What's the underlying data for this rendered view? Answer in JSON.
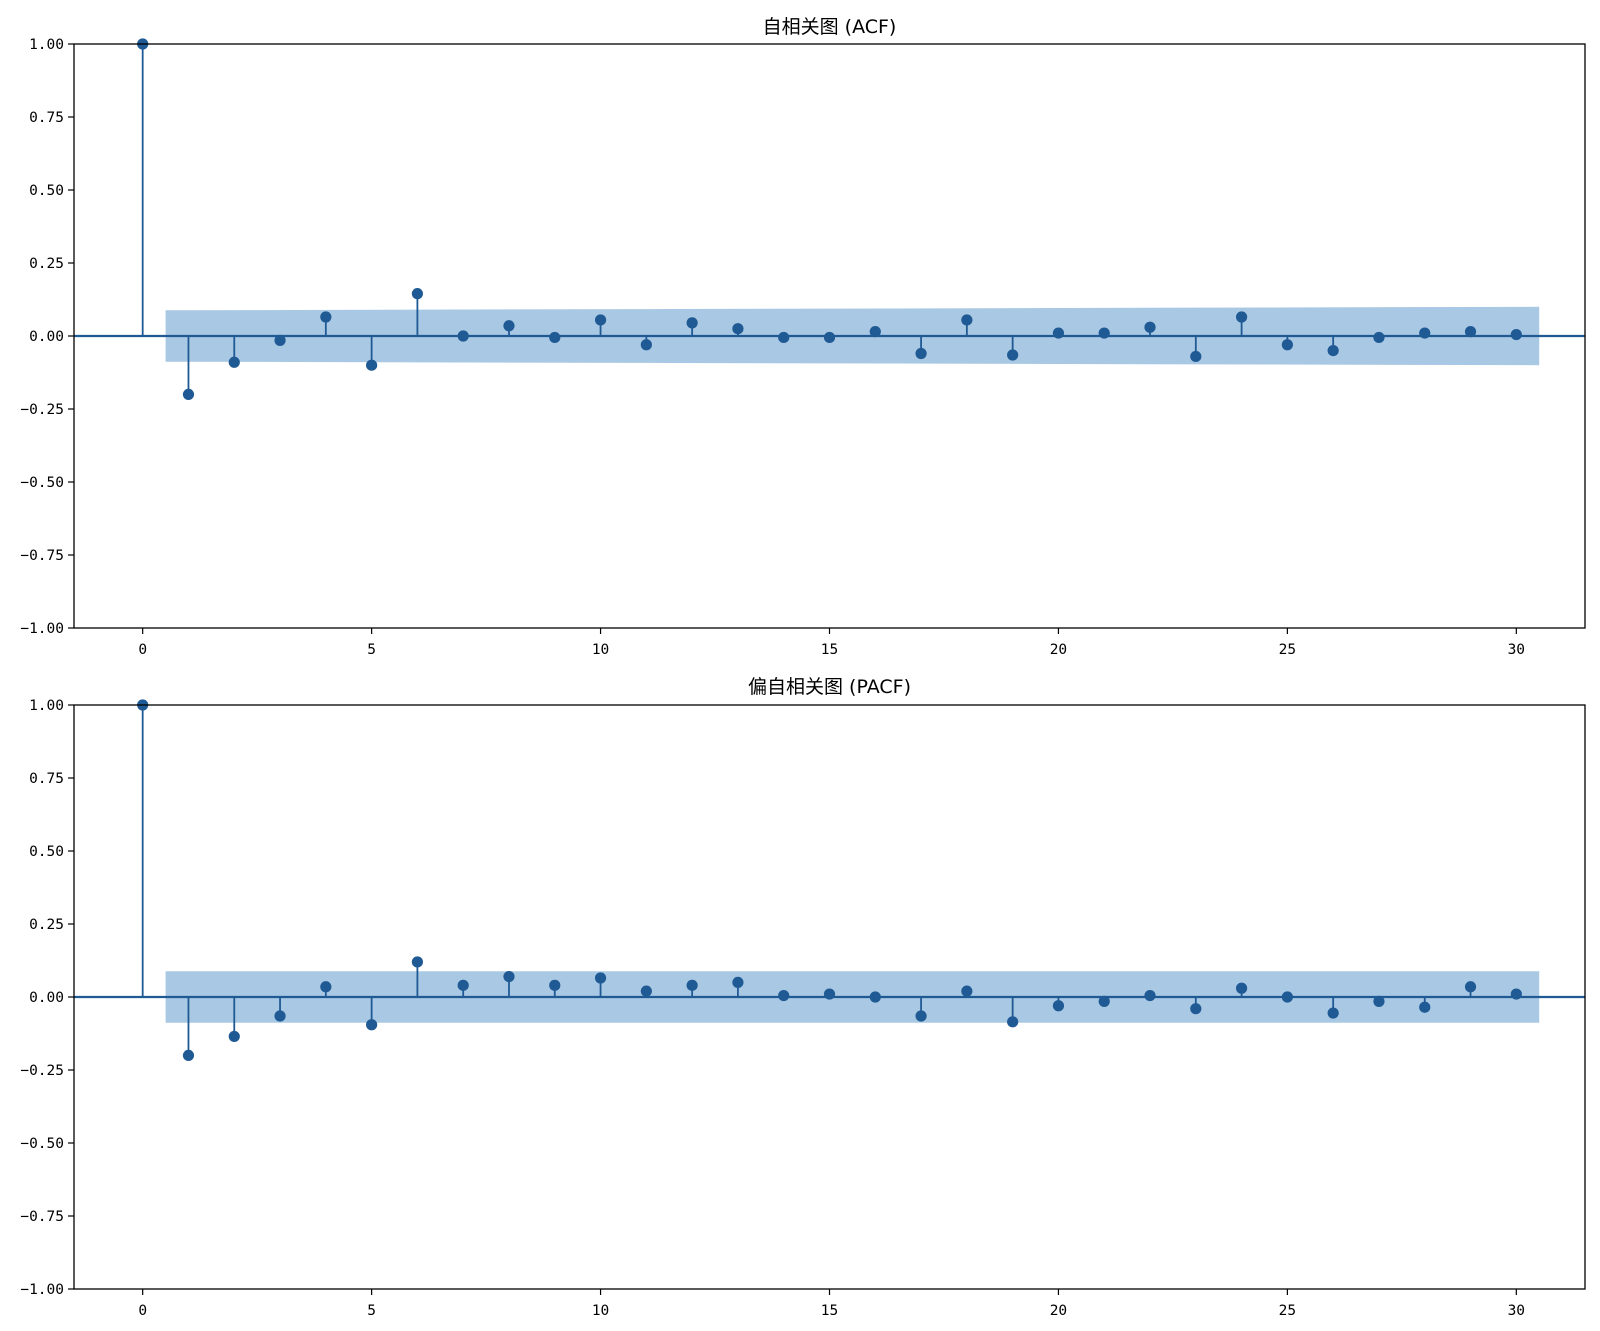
{
  "chart_data": [
    {
      "type": "stem",
      "title": "自相关图 (ACF)",
      "xlabel": "",
      "ylabel": "",
      "xlim": [
        -1.5,
        31.5
      ],
      "ylim": [
        -1.0,
        1.0
      ],
      "x_ticks": [
        0,
        5,
        10,
        15,
        20,
        25,
        30
      ],
      "y_ticks": [
        1.0,
        0.75,
        0.5,
        0.25,
        0.0,
        -0.25,
        -0.5,
        -0.75,
        -1.0
      ],
      "x_tick_labels": [
        "0",
        "5",
        "10",
        "15",
        "20",
        "25",
        "30"
      ],
      "y_tick_labels": [
        "1.00",
        "0.75",
        "0.50",
        "0.25",
        "0.00",
        "−0.25",
        "−0.50",
        "−0.75",
        "−1.00"
      ],
      "lags": [
        0,
        1,
        2,
        3,
        4,
        5,
        6,
        7,
        8,
        9,
        10,
        11,
        12,
        13,
        14,
        15,
        16,
        17,
        18,
        19,
        20,
        21,
        22,
        23,
        24,
        25,
        26,
        27,
        28,
        29,
        30
      ],
      "values": [
        1.0,
        -0.2,
        -0.09,
        -0.015,
        0.065,
        -0.1,
        0.145,
        0.0,
        0.035,
        -0.005,
        0.055,
        -0.03,
        0.045,
        0.025,
        -0.005,
        -0.005,
        0.015,
        -0.06,
        0.055,
        -0.065,
        0.01,
        0.01,
        0.03,
        -0.07,
        0.065,
        -0.03,
        -0.05,
        -0.005,
        0.01,
        0.015,
        0.005
      ],
      "confidence_band": {
        "x_range": [
          0.5,
          30.5
        ],
        "lower_start": -0.088,
        "lower_end": -0.1,
        "upper_start": 0.088,
        "upper_end": 0.1
      },
      "grid": false,
      "legend": "none",
      "colors": {
        "stem": "#1f5a94",
        "band": "#a9c8e4",
        "axis": "#000000"
      }
    },
    {
      "type": "stem",
      "title": "偏自相关图 (PACF)",
      "xlabel": "",
      "ylabel": "",
      "xlim": [
        -1.5,
        31.5
      ],
      "ylim": [
        -1.0,
        1.0
      ],
      "x_ticks": [
        0,
        5,
        10,
        15,
        20,
        25,
        30
      ],
      "y_ticks": [
        1.0,
        0.75,
        0.5,
        0.25,
        0.0,
        -0.25,
        -0.5,
        -0.75,
        -1.0
      ],
      "x_tick_labels": [
        "0",
        "5",
        "10",
        "15",
        "20",
        "25",
        "30"
      ],
      "y_tick_labels": [
        "1.00",
        "0.75",
        "0.50",
        "0.25",
        "0.00",
        "−0.25",
        "−0.50",
        "−0.75",
        "−1.00"
      ],
      "lags": [
        0,
        1,
        2,
        3,
        4,
        5,
        6,
        7,
        8,
        9,
        10,
        11,
        12,
        13,
        14,
        15,
        16,
        17,
        18,
        19,
        20,
        21,
        22,
        23,
        24,
        25,
        26,
        27,
        28,
        29,
        30
      ],
      "values": [
        1.0,
        -0.2,
        -0.135,
        -0.065,
        0.035,
        -0.095,
        0.12,
        0.04,
        0.07,
        0.04,
        0.065,
        0.02,
        0.04,
        0.05,
        0.005,
        0.01,
        0.0,
        -0.065,
        0.02,
        -0.085,
        -0.03,
        -0.015,
        0.005,
        -0.04,
        0.03,
        0.0,
        -0.055,
        -0.015,
        -0.035,
        0.035,
        0.01
      ],
      "confidence_band": {
        "x_range": [
          0.5,
          30.5
        ],
        "lower_start": -0.088,
        "lower_end": -0.088,
        "upper_start": 0.088,
        "upper_end": 0.088
      },
      "grid": false,
      "legend": "none",
      "colors": {
        "stem": "#1f5a94",
        "band": "#a9c8e4",
        "axis": "#000000"
      }
    }
  ]
}
